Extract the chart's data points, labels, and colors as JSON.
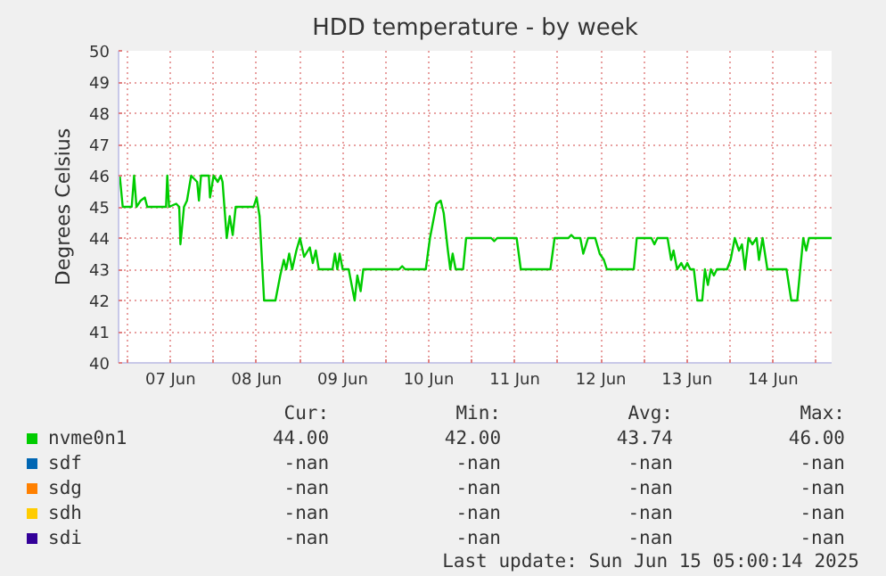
{
  "chart_data": {
    "type": "line",
    "title": "HDD temperature - by week",
    "ylabel": "Degrees Celsius",
    "xlim": [
      "2025-06-06T21:30",
      "2025-06-15T04:20"
    ],
    "ylim": [
      40,
      50
    ],
    "yticks": [
      40,
      41,
      42,
      43,
      44,
      45,
      46,
      47,
      48,
      49,
      50
    ],
    "xticks": [
      {
        "value": "2025-06-07T00:00",
        "label": null
      },
      {
        "value": "2025-06-07T12:00",
        "label": "07 Jun"
      },
      {
        "value": "2025-06-08T00:00",
        "label": null
      },
      {
        "value": "2025-06-08T12:00",
        "label": "08 Jun"
      },
      {
        "value": "2025-06-09T00:00",
        "label": null
      },
      {
        "value": "2025-06-09T12:00",
        "label": "09 Jun"
      },
      {
        "value": "2025-06-10T00:00",
        "label": null
      },
      {
        "value": "2025-06-10T12:00",
        "label": "10 Jun"
      },
      {
        "value": "2025-06-11T00:00",
        "label": null
      },
      {
        "value": "2025-06-11T12:00",
        "label": "11 Jun"
      },
      {
        "value": "2025-06-12T00:00",
        "label": null
      },
      {
        "value": "2025-06-12T12:00",
        "label": "12 Jun"
      },
      {
        "value": "2025-06-13T00:00",
        "label": null
      },
      {
        "value": "2025-06-13T12:00",
        "label": "13 Jun"
      },
      {
        "value": "2025-06-14T00:00",
        "label": null
      },
      {
        "value": "2025-06-14T12:00",
        "label": "14 Jun"
      },
      {
        "value": "2025-06-15T00:00",
        "label": null
      }
    ],
    "grid": true,
    "legend": "bottom",
    "series": [
      {
        "name": "nvme0n1",
        "color": "#00cc00",
        "x": [
          "2025-06-06T21:50",
          "2025-06-06T22:40",
          "2025-06-07T01:10",
          "2025-06-07T01:50",
          "2025-06-07T02:30",
          "2025-06-07T03:40",
          "2025-06-07T04:50",
          "2025-06-07T05:30",
          "2025-06-07T10:45",
          "2025-06-07T11:05",
          "2025-06-07T11:35",
          "2025-06-07T13:35",
          "2025-06-07T14:25",
          "2025-06-07T14:45",
          "2025-06-07T15:45",
          "2025-06-07T16:35",
          "2025-06-07T17:45",
          "2025-06-07T19:25",
          "2025-06-07T19:55",
          "2025-06-07T20:30",
          "2025-06-07T22:40",
          "2025-06-07T23:00",
          "2025-06-08T00:00",
          "2025-06-08T01:10",
          "2025-06-08T02:00",
          "2025-06-08T02:30",
          "2025-06-08T03:40",
          "2025-06-08T04:30",
          "2025-06-08T05:20",
          "2025-06-08T06:10",
          "2025-06-08T11:10",
          "2025-06-08T12:00",
          "2025-06-08T12:50",
          "2025-06-08T14:05",
          "2025-06-08T17:15",
          "2025-06-08T18:35",
          "2025-06-08T19:35",
          "2025-06-08T20:15",
          "2025-06-08T21:05",
          "2025-06-08T21:55",
          "2025-06-08T23:05",
          "2025-06-09T00:05",
          "2025-06-09T01:15",
          "2025-06-09T02:50",
          "2025-06-09T03:40",
          "2025-06-09T04:30",
          "2025-06-09T05:20",
          "2025-06-09T09:10",
          "2025-06-09T09:50",
          "2025-06-09T10:30",
          "2025-06-09T11:10",
          "2025-06-09T12:00",
          "2025-06-09T13:40",
          "2025-06-09T14:30",
          "2025-06-09T15:20",
          "2025-06-09T16:05",
          "2025-06-09T17:00",
          "2025-06-09T17:45",
          "2025-06-10T03:45",
          "2025-06-10T04:35",
          "2025-06-10T05:25",
          "2025-06-10T11:10",
          "2025-06-10T12:20",
          "2025-06-10T14:10",
          "2025-06-10T15:20",
          "2025-06-10T16:10",
          "2025-06-10T17:20",
          "2025-06-10T18:00",
          "2025-06-10T18:40",
          "2025-06-10T19:30",
          "2025-06-10T21:35",
          "2025-06-10T22:25",
          "2025-06-11T05:25",
          "2025-06-11T06:15",
          "2025-06-11T07:05",
          "2025-06-11T12:30",
          "2025-06-11T13:40",
          "2025-06-11T21:55",
          "2025-06-11T23:05",
          "2025-06-12T02:55",
          "2025-06-12T03:45",
          "2025-06-12T04:35",
          "2025-06-12T06:15",
          "2025-06-12T07:05",
          "2025-06-12T08:25",
          "2025-06-12T10:25",
          "2025-06-12T11:40",
          "2025-06-12T12:50",
          "2025-06-12T13:40",
          "2025-06-12T21:10",
          "2025-06-12T22:00",
          "2025-06-13T02:05",
          "2025-06-13T02:55",
          "2025-06-13T03:45",
          "2025-06-13T06:35",
          "2025-06-13T07:35",
          "2025-06-13T08:15",
          "2025-06-13T09:15",
          "2025-06-13T10:25",
          "2025-06-13T11:15",
          "2025-06-13T12:05",
          "2025-06-13T12:55",
          "2025-06-13T13:55",
          "2025-06-13T14:55",
          "2025-06-13T16:15",
          "2025-06-13T17:00",
          "2025-06-13T17:50",
          "2025-06-13T18:40",
          "2025-06-13T19:30",
          "2025-06-13T20:20",
          "2025-06-13T23:10",
          "2025-06-14T00:10",
          "2025-06-14T01:20",
          "2025-06-14T02:30",
          "2025-06-14T03:20",
          "2025-06-14T04:10",
          "2025-06-14T05:10",
          "2025-06-14T06:15",
          "2025-06-14T07:25",
          "2025-06-14T08:05",
          "2025-06-14T09:05",
          "2025-06-14T10:25",
          "2025-06-14T15:45",
          "2025-06-14T17:05",
          "2025-06-14T18:45",
          "2025-06-14T19:35",
          "2025-06-14T20:25",
          "2025-06-14T21:15",
          "2025-06-14T22:00",
          "2025-06-15T04:20"
        ],
        "values": [
          46,
          45,
          45,
          46,
          45,
          45.2,
          45.3,
          45,
          45,
          46,
          45,
          45.1,
          45,
          43.8,
          45,
          45.2,
          46,
          45.8,
          45.2,
          46,
          46,
          45.3,
          46,
          45.8,
          46,
          45.8,
          44,
          44.7,
          44.1,
          45,
          45,
          45.3,
          44.7,
          42,
          42,
          42.8,
          43.3,
          43,
          43.5,
          43,
          43.6,
          44,
          43.4,
          43.7,
          43.2,
          43.6,
          43,
          43,
          43.5,
          43,
          43.5,
          43,
          43,
          42.5,
          42,
          42.8,
          42.3,
          43,
          43,
          43.1,
          43,
          43,
          44,
          45.1,
          45.2,
          44.8,
          43.6,
          43,
          43.5,
          43,
          43,
          44,
          44,
          43.9,
          44,
          44,
          43,
          43,
          44,
          44,
          44.1,
          44,
          44,
          43.5,
          44,
          44,
          43.5,
          43.3,
          43,
          43,
          44,
          44,
          43.8,
          44,
          44,
          43.3,
          43.6,
          43,
          43.2,
          43,
          43.2,
          43,
          43,
          42,
          42,
          43,
          42.5,
          43,
          42.8,
          43,
          43,
          43.3,
          44,
          43.6,
          43.8,
          43,
          44,
          43.8,
          44,
          43.3,
          44,
          43,
          43,
          42,
          42,
          43,
          44,
          43.6,
          44,
          44
        ]
      },
      {
        "name": "sdf",
        "color": "#0066b3"
      },
      {
        "name": "sdg",
        "color": "#ff8000"
      },
      {
        "name": "sdh",
        "color": "#ffcc00"
      },
      {
        "name": "sdi",
        "color": "#330099"
      }
    ],
    "annotations": [
      "Cur:",
      "Min:",
      "Avg:",
      "Max:",
      "44.00",
      "42.00",
      "43.74",
      "46.00",
      "-nan",
      "-nan",
      "-nan",
      "-nan",
      "-nan",
      "-nan",
      "-nan",
      "-nan",
      "-nan",
      "-nan",
      "-nan",
      "-nan",
      "-nan",
      "-nan",
      "-nan",
      "-nan",
      "Last update: Sun Jun 15 05:00:14 2025"
    ]
  }
}
